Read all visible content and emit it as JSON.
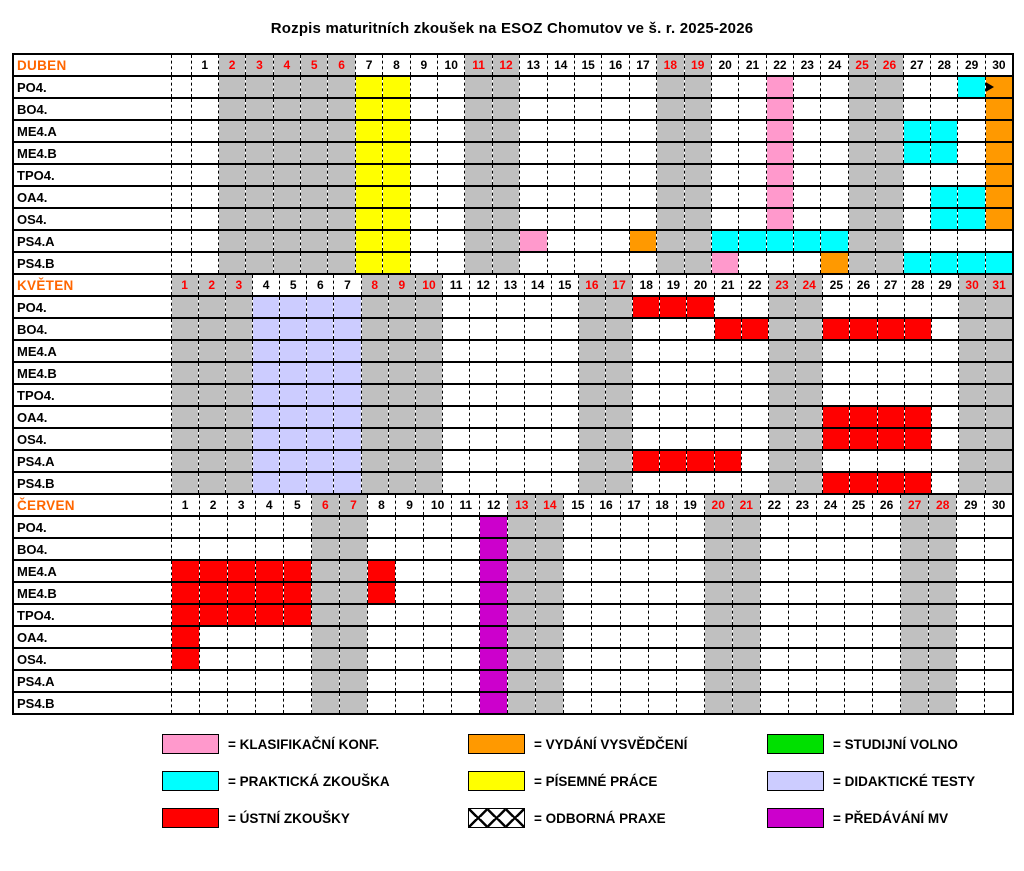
{
  "title": {
    "prefix": "Rozpis maturitních zkoušek na ",
    "school": "ESOZ",
    "suffix": " Chomutov ve š. r. 2025-2026"
  },
  "colors": {
    "gray": "#C0C0C0",
    "yellow": "#FFFF00",
    "pink": "#FF99CC",
    "cyan": "#00FFFF",
    "orange": "#FF9900",
    "red": "#FF0000",
    "lavender": "#CCCCFF",
    "purple": "#CC00CC",
    "green": "#00E000",
    "month_label": "#FF6600",
    "red_day_number": "#FF0000"
  },
  "months": [
    {
      "name": "DUBEN",
      "days": 30,
      "spacer": true,
      "red_days": [
        2,
        3,
        4,
        5,
        6,
        11,
        12,
        18,
        19,
        25,
        26
      ],
      "gray_days": [
        2,
        3,
        4,
        5,
        6,
        11,
        12,
        18,
        19,
        25,
        26
      ],
      "all_cells": {},
      "rows": [
        {
          "label": "PO4.",
          "cells": {
            "7": "yellow",
            "8": "yellow",
            "13": "praxe",
            "14": "praxe",
            "15": "praxe",
            "16": "praxe",
            "17": "praxe",
            "20": "praxe",
            "21": "praxe",
            "22": "pink praxe",
            "23": "praxe",
            "24": "praxe",
            "27": "praxe",
            "28": "praxe",
            "29": "cyan praxe",
            "30": "orange praxe arrow"
          }
        },
        {
          "label": "BO4.",
          "cells": {
            "7": "yellow",
            "8": "yellow",
            "22": "pink",
            "30": "orange"
          }
        },
        {
          "label": "ME4.A",
          "cells": {
            "7": "yellow",
            "8": "yellow",
            "22": "pink",
            "27": "cyan",
            "28": "cyan",
            "30": "orange"
          }
        },
        {
          "label": "ME4.B",
          "cells": {
            "7": "yellow",
            "8": "yellow",
            "22": "pink",
            "27": "cyan",
            "28": "cyan",
            "30": "orange"
          }
        },
        {
          "label": "TPO4.",
          "cells": {
            "7": "yellow",
            "8": "yellow",
            "22": "pink",
            "30": "orange"
          }
        },
        {
          "label": "OA4.",
          "cells": {
            "7": "yellow",
            "8": "yellow",
            "22": "pink",
            "28": "cyan",
            "29": "cyan",
            "30": "orange"
          }
        },
        {
          "label": "OS4.",
          "cells": {
            "7": "yellow",
            "8": "yellow",
            "22": "pink",
            "28": "cyan",
            "29": "cyan",
            "30": "orange"
          }
        },
        {
          "label": "PS4.A",
          "cells": {
            "7": "yellow",
            "8": "yellow",
            "13": "pink",
            "17": "orange",
            "20": "cyan",
            "21": "cyan",
            "22": "cyan",
            "23": "cyan",
            "24": "cyan"
          }
        },
        {
          "label": "PS4.B",
          "cells": {
            "7": "yellow",
            "8": "yellow",
            "20": "pink",
            "24": "orange",
            "27": "cyan",
            "28": "cyan",
            "29": "cyan",
            "30": "cyan"
          }
        }
      ]
    },
    {
      "name": "KVĚTEN",
      "days": 31,
      "spacer": false,
      "red_days": [
        1,
        2,
        3,
        8,
        9,
        10,
        16,
        17,
        23,
        24,
        30,
        31
      ],
      "gray_days": [
        1,
        2,
        3,
        8,
        9,
        10,
        16,
        17,
        23,
        24,
        30,
        31
      ],
      "all_cells": {
        "4": "lavender",
        "5": "lavender",
        "6": "lavender",
        "7": "lavender"
      },
      "rows": [
        {
          "label": "PO4.",
          "cells": {
            "18": "red",
            "19": "red",
            "20": "red"
          }
        },
        {
          "label": "BO4.",
          "cells": {
            "21": "red",
            "22": "red",
            "25": "red",
            "26": "red",
            "27": "red",
            "28": "red"
          }
        },
        {
          "label": "ME4.A",
          "cells": {}
        },
        {
          "label": "ME4.B",
          "cells": {}
        },
        {
          "label": "TPO4.",
          "cells": {}
        },
        {
          "label": "OA4.",
          "cells": {
            "25": "red",
            "26": "red",
            "27": "red",
            "28": "red"
          }
        },
        {
          "label": "OS4.",
          "cells": {
            "25": "red",
            "26": "red",
            "27": "red",
            "28": "red"
          }
        },
        {
          "label": "PS4.A",
          "cells": {
            "18": "red",
            "19": "red",
            "20": "red",
            "21": "red"
          }
        },
        {
          "label": "PS4.B",
          "cells": {
            "25": "red",
            "26": "red",
            "27": "red",
            "28": "red"
          }
        }
      ]
    },
    {
      "name": "ČERVEN",
      "days": 30,
      "spacer": false,
      "red_days": [
        6,
        7,
        13,
        14,
        20,
        21,
        27,
        28
      ],
      "gray_days": [
        6,
        7,
        13,
        14,
        20,
        21,
        27,
        28
      ],
      "all_cells": {
        "12": "purple"
      },
      "rows": [
        {
          "label": "PO4.",
          "cells": {}
        },
        {
          "label": "BO4.",
          "cells": {}
        },
        {
          "label": "ME4.A",
          "cells": {
            "1": "red",
            "2": "red",
            "3": "red",
            "4": "red",
            "5": "red",
            "8": "red"
          }
        },
        {
          "label": "ME4.B",
          "cells": {
            "1": "red",
            "2": "red",
            "3": "red",
            "4": "red",
            "5": "red",
            "8": "red"
          }
        },
        {
          "label": "TPO4.",
          "cells": {
            "1": "red",
            "2": "red",
            "3": "red",
            "4": "red",
            "5": "red"
          }
        },
        {
          "label": "OA4.",
          "cells": {
            "1": "red"
          }
        },
        {
          "label": "OS4.",
          "cells": {
            "1": "red"
          }
        },
        {
          "label": "PS4.A",
          "cells": {}
        },
        {
          "label": "PS4.B",
          "cells": {}
        }
      ]
    }
  ],
  "legend": [
    {
      "swatch": "pink",
      "label": "= KLASIFIKAČNÍ KONF."
    },
    {
      "swatch": "orange",
      "label": "= VYDÁNÍ VYSVĚDČENÍ"
    },
    {
      "swatch": "green",
      "label": "= STUDIJNÍ VOLNO"
    },
    {
      "swatch": "cyan",
      "label": "= PRAKTICKÁ ZKOUŠKA"
    },
    {
      "swatch": "yellow",
      "label": "= PÍSEMNÉ PRÁCE"
    },
    {
      "swatch": "lavender",
      "label": "= DIDAKTICKÉ TESTY"
    },
    {
      "swatch": "red",
      "label": "= ÚSTNÍ ZKOUŠKY"
    },
    {
      "swatch": "praxe",
      "label": "= ODBORNÁ PRAXE"
    },
    {
      "swatch": "purple",
      "label": "= PŘEDÁVÁNÍ MV"
    }
  ]
}
